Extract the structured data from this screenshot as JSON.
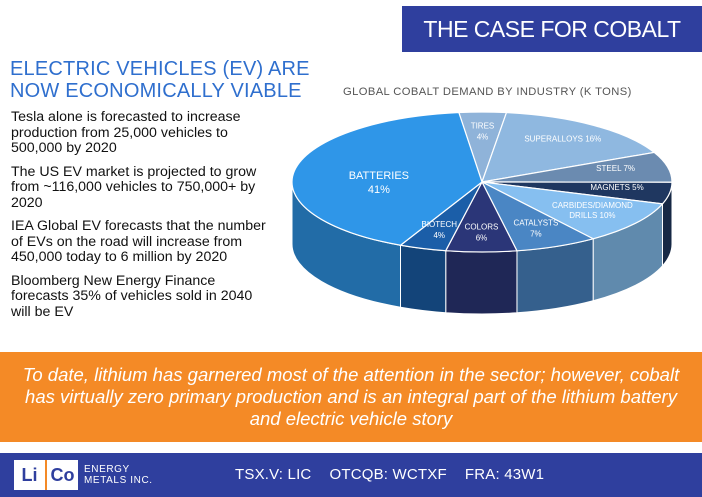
{
  "header": {
    "title": "THE CASE FOR COBALT"
  },
  "left": {
    "heading_line1": "ELECTRIC VEHICLES (EV) ARE",
    "heading_line2": "NOW ECONOMICALLY VIABLE",
    "bullets": [
      "Tesla alone is forecasted to increase production from 25,000 vehicles to 500,000 by 2020",
      "The US EV market is projected to grow from ~116,000 vehicles to 750,000+ by 2020",
      "IEA Global EV forecasts that the number of EVs on the road will increase from 450,000 today to 6 million by 2020",
      "Bloomberg New Energy Finance forecasts 35% of vehicles sold in 2040 will be EV"
    ]
  },
  "chart_data": {
    "type": "pie",
    "title": "GLOBAL COBALT DEMAND BY INDUSTRY (K TONS)",
    "slices": [
      {
        "label": "TIRES",
        "value": 4,
        "display": "4%",
        "color": "#8fb3d9"
      },
      {
        "label": "SUPERALLOYS",
        "value": 16,
        "display": "16%",
        "color": "#8fb8e0"
      },
      {
        "label": "STEEL",
        "value": 7,
        "display": "7%",
        "color": "#6b8bb0"
      },
      {
        "label": "MAGNETS",
        "value": 5,
        "display": "5%",
        "color": "#1f3760"
      },
      {
        "label": "CARBIDES/DIAMOND DRILLS",
        "value": 10,
        "display": "10%",
        "color": "#86bff0"
      },
      {
        "label": "CATALYSTS",
        "value": 7,
        "display": "7%",
        "color": "#4a86c4"
      },
      {
        "label": "COLORS",
        "value": 6,
        "display": "6%",
        "color": "#2b3678"
      },
      {
        "label": "BIOTECH",
        "value": 4,
        "display": "4%",
        "color": "#1b5ea8"
      },
      {
        "label": "BATTERIES",
        "value": 41,
        "display": "41%",
        "color": "#2f96e8"
      }
    ]
  },
  "banner": {
    "text": "To date, lithium has garnered most of the attention in the sector; however, cobalt has virtually zero primary production and is an integral part of the lithium battery and electric vehicle story"
  },
  "footer": {
    "logo_li": "Li",
    "logo_co": "Co",
    "logo_line1": "ENERGY",
    "logo_line2": "METALS INC.",
    "tickers": [
      "TSX.V: LIC",
      "OTCQB: WCTXF",
      "FRA: 43W1"
    ]
  }
}
